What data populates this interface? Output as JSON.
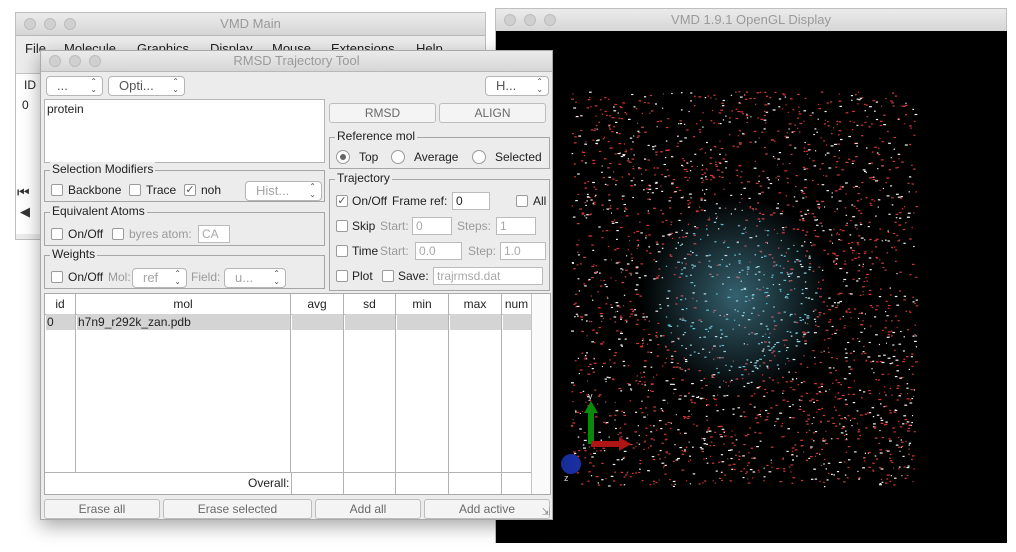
{
  "vmd_main": {
    "title": "VMD Main",
    "menus": [
      "File",
      "Molecule",
      "Graphics",
      "Display",
      "Mouse",
      "Extensions",
      "Help"
    ],
    "id_header": "ID",
    "row_id": "0"
  },
  "gl_display": {
    "title": "VMD 1.9.1 OpenGL Display",
    "axes": {
      "x": "x",
      "y": "y",
      "z": "z"
    }
  },
  "rmsd": {
    "title": "RMSD Trajectory Tool",
    "menus": {
      "file": "...",
      "options": "Opti...",
      "help": "H..."
    },
    "selection_text": "protein",
    "buttons": {
      "rmsd": "RMSD",
      "align": "ALIGN"
    },
    "selection_modifiers": {
      "title": "Selection Modifiers",
      "backbone": "Backbone",
      "trace": "Trace",
      "noh": "noh",
      "noh_checked": true,
      "hist": "Hist..."
    },
    "equivalent_atoms": {
      "title": "Equivalent Atoms",
      "onoff": "On/Off",
      "byres": "byres atom:",
      "atom_value": "CA"
    },
    "weights": {
      "title": "Weights",
      "onoff": "On/Off",
      "mol_label": "Mol:",
      "mol_value": "ref",
      "field_label": "Field:",
      "field_value": "u..."
    },
    "reference_mol": {
      "title": "Reference mol",
      "top": "Top",
      "average": "Average",
      "selected": "Selected",
      "selected_option": "Top"
    },
    "trajectory": {
      "title": "Trajectory",
      "onoff": "On/Off",
      "onoff_checked": true,
      "frame_ref_label": "Frame ref:",
      "frame_ref": "0",
      "all": "All",
      "skip": "Skip",
      "start_label": "Start:",
      "skip_start": "0",
      "steps_label": "Steps:",
      "skip_steps": "1",
      "time": "Time",
      "time_start": "0.0",
      "step_label": "Step:",
      "time_step": "1.0",
      "plot": "Plot",
      "save": "Save:",
      "save_file": "trajrmsd.dat"
    },
    "table": {
      "columns": [
        "id",
        "mol",
        "avg",
        "sd",
        "min",
        "max",
        "num"
      ],
      "rows": [
        {
          "id": "0",
          "mol": "h7n9_r292k_zan.pdb"
        }
      ],
      "overall_label": "Overall:"
    },
    "bottom_buttons": {
      "erase_all": "Erase all",
      "erase_selected": "Erase selected",
      "add_all": "Add all",
      "add_active": "Add active"
    }
  }
}
